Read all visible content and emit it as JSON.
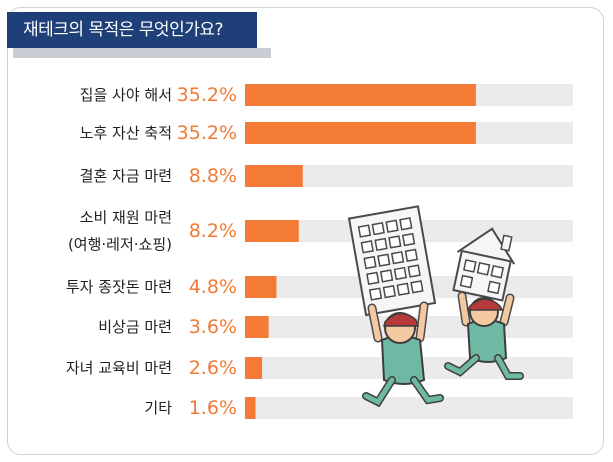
{
  "title": "재테크의 목적은 무엇인가요?",
  "chart_data": {
    "type": "bar",
    "orientation": "horizontal",
    "title": "재테크의 목적은 무엇인가요?",
    "categories": [
      [
        "집을 사야 해서"
      ],
      [
        "노후 자산 축적"
      ],
      [
        "결혼 자금 마련"
      ],
      [
        "소비 재원 마련",
        "(여행·레저·쇼핑)"
      ],
      [
        "투자 종잣돈 마련"
      ],
      [
        "비상금 마련"
      ],
      [
        "자녀 교육비 마련"
      ],
      [
        "기타"
      ]
    ],
    "values": [
      35.2,
      35.2,
      8.8,
      8.2,
      4.8,
      3.6,
      2.6,
      1.6
    ],
    "value_labels": [
      "35.2%",
      "35.2%",
      "8.8%",
      "8.2%",
      "4.8%",
      "3.6%",
      "2.6%",
      "1.6%"
    ],
    "xlim": [
      0,
      50
    ],
    "unit": "%",
    "bar_color": "#f47b36",
    "track_color": "#ebebeb",
    "value_color": "#f07a36",
    "grid": false,
    "legend": "none"
  },
  "illustration": {
    "description_icons": [
      "person-carrying-apartment-icon",
      "person-carrying-house-icon"
    ],
    "skin_color": "#f2c9a0",
    "shirt_color": "#6fb9a4",
    "cap_color": "#b63a3a",
    "building_color": "#f4f4f4",
    "house_color": "#f4f4f4"
  }
}
